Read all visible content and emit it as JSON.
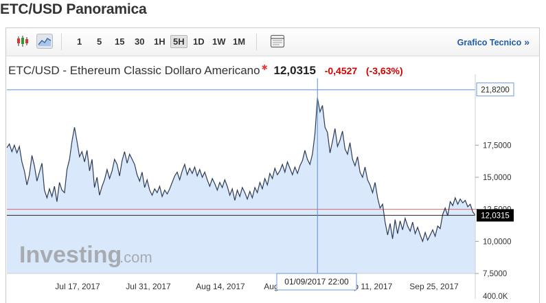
{
  "page": {
    "title": "ETC/USD Panoramica"
  },
  "toolbar": {
    "timeframes": [
      "1",
      "5",
      "15",
      "30",
      "1H",
      "5H",
      "1D",
      "1W",
      "1M"
    ],
    "active_timeframe": "5H",
    "tech_link": "Grafico Tecnico",
    "tech_chevron": "»",
    "icons": [
      "candlestick-chart-icon",
      "area-chart-icon",
      "layout-icon"
    ]
  },
  "quote": {
    "pair": "ETC/USD - Ethereum Classic Dollaro Americano",
    "last": "12,0315",
    "change": "-0,4527",
    "change_pct": "(-3,63%)"
  },
  "watermark": {
    "brand": "Investing",
    "suffix": ".com"
  },
  "crosshair": {
    "date_label": "01/09/2017 22:00",
    "value_label": "21,8200"
  },
  "colors": {
    "line": "#2c3a55",
    "fill": "#d9e9fb",
    "crosshair": "#5b8fd6",
    "ref_line": "#d96a6a",
    "last_line": "#222222",
    "negative": "#d40000",
    "link": "#1f5ba8"
  },
  "chart_data": {
    "type": "area",
    "series": [
      {
        "values": [
          17.3,
          17.6,
          17.0,
          17.5,
          16.9,
          17.4,
          16.2,
          15.5,
          14.4,
          15.2,
          16.7,
          15.9,
          14.7,
          15.4,
          16.1,
          14.0,
          13.4,
          14.1,
          13.5,
          14.3,
          13.1,
          14.6,
          14.0,
          13.8,
          15.6,
          16.4,
          17.8,
          18.9,
          17.8,
          16.6,
          17.0,
          16.2,
          17.1,
          15.5,
          16.4,
          14.2,
          15.0,
          13.6,
          14.3,
          14.8,
          15.6,
          14.9,
          15.5,
          16.4,
          16.0,
          15.1,
          16.3,
          17.0,
          16.1,
          16.8,
          16.4,
          16.0,
          15.2,
          14.7,
          15.4,
          14.2,
          14.8,
          14.0,
          13.6,
          14.1,
          13.8,
          14.3,
          13.5,
          14.0,
          13.7,
          14.1,
          14.6,
          15.1,
          15.4,
          14.8,
          15.5,
          16.0,
          15.2,
          15.7,
          15.3,
          15.8,
          15.1,
          15.6,
          15.0,
          15.4,
          14.8,
          14.3,
          14.9,
          14.5,
          14.0,
          14.6,
          14.2,
          14.8,
          14.3,
          13.6,
          14.1,
          13.2,
          14.0,
          13.5,
          14.2,
          13.8,
          13.3,
          13.9,
          13.4,
          14.2,
          13.8,
          14.6,
          14.1,
          14.9,
          14.4,
          15.3,
          14.9,
          15.7,
          15.2,
          15.5,
          16.0,
          15.4,
          16.2,
          15.7,
          15.2,
          15.8,
          15.3,
          15.9,
          16.3,
          17.1,
          16.4,
          16.0,
          16.8,
          18.4,
          21.2,
          20.1,
          20.6,
          18.9,
          18.5,
          16.9,
          17.8,
          18.8,
          17.4,
          17.9,
          18.6,
          17.2,
          16.8,
          17.7,
          16.4,
          15.9,
          16.6,
          15.4,
          15.0,
          15.8,
          14.8,
          14.4,
          13.8,
          14.6,
          13.4,
          12.6,
          12.9,
          11.5,
          10.5,
          11.4,
          10.2,
          11.7,
          10.6,
          11.6,
          10.9,
          11.8,
          11.2,
          10.8,
          11.5,
          10.6,
          11.1,
          10.5,
          10.0,
          10.7,
          10.1,
          10.5,
          10.9,
          10.4,
          11.2,
          11.0,
          12.1,
          12.6,
          12.0,
          13.1,
          12.8,
          13.4,
          12.9,
          13.3,
          13.0,
          13.2,
          12.7,
          12.9,
          12.3,
          12.0315
        ]
      }
    ],
    "x_labels": [
      "Jul 17, 2017",
      "Jul 31, 2017",
      "Aug 14, 2017",
      "Aug 28, 2017",
      "Sep 11, 2017",
      "Sep 25, 2017"
    ],
    "y_ticks": [
      "17,5000",
      "15,0000",
      "12,5000",
      "10,0000",
      "7,5000"
    ],
    "y_ticks_values": [
      17.5,
      15.0,
      12.5,
      10.0,
      7.5
    ],
    "volume_label": "400,0K",
    "ylim": [
      7.5,
      22.5
    ],
    "ref_value": 12.5,
    "last_value": 12.0315,
    "high_value": 21.82,
    "grid": false
  }
}
